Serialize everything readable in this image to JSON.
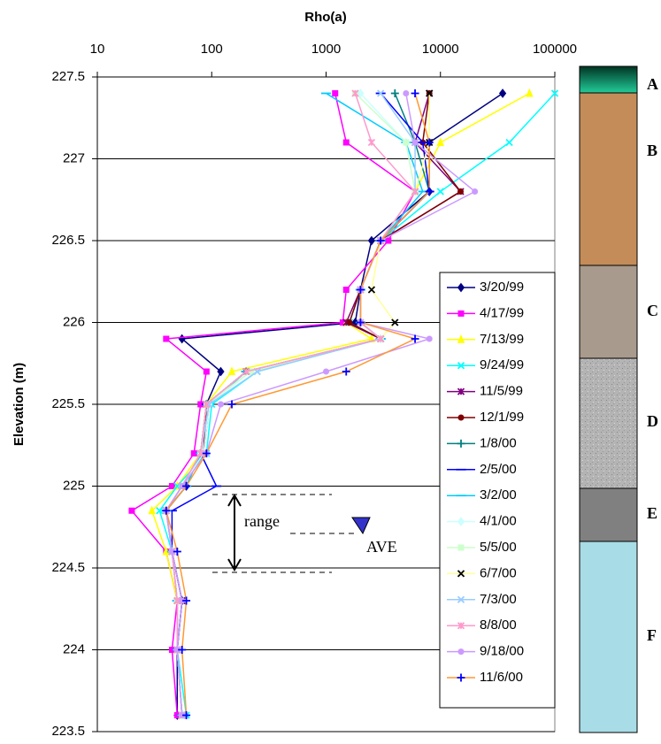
{
  "chart_data": {
    "type": "line",
    "title": "Rho(a)",
    "y_label": "Elevation (m)",
    "xscale": "log",
    "xlim": [
      10,
      100000
    ],
    "xticks": [
      10,
      100,
      1000,
      10000,
      100000
    ],
    "ylim": [
      223.5,
      227.5
    ],
    "yticks": [
      227.5,
      227,
      226.5,
      226,
      225.5,
      225,
      224.5,
      224,
      223.5
    ],
    "grid": true,
    "y": [
      227.4,
      227.1,
      226.8,
      226.5,
      226.2,
      226.0,
      225.9,
      225.7,
      225.5,
      225.2,
      225.0,
      224.85,
      224.6,
      224.3,
      224.0,
      223.6
    ],
    "series": [
      {
        "name": "3/20/99",
        "color": "#000080",
        "marker": "diamond",
        "values": [
          35000,
          8000,
          8000,
          2500,
          2000,
          1800,
          55,
          120,
          90,
          80,
          60,
          40,
          45,
          55,
          50,
          50
        ]
      },
      {
        "name": "4/17/99",
        "color": "#ff00ff",
        "marker": "square",
        "values": [
          1200,
          1500,
          6000,
          3500,
          1500,
          1400,
          40,
          90,
          80,
          70,
          45,
          20,
          40,
          50,
          45,
          50
        ]
      },
      {
        "name": "7/13/99",
        "color": "#ffff00",
        "marker": "triangle",
        "values": [
          60000,
          10000,
          6000,
          3000,
          2000,
          1500,
          2500,
          150,
          90,
          80,
          50,
          30,
          40,
          50,
          50,
          55
        ]
      },
      {
        "name": "9/24/99",
        "color": "#00ffff",
        "marker": "x",
        "values": [
          100000,
          40000,
          10000,
          3000,
          2000,
          1600,
          3000,
          250,
          100,
          90,
          50,
          35,
          45,
          55,
          50,
          60
        ]
      },
      {
        "name": "11/5/99",
        "color": "#800080",
        "marker": "star",
        "values": [
          8000,
          6000,
          15000,
          3000,
          2000,
          1500,
          3000,
          200,
          95,
          85,
          55,
          40,
          45,
          55,
          50,
          55
        ]
      },
      {
        "name": "12/1/99",
        "color": "#800000",
        "marker": "circle",
        "values": [
          8000,
          7000,
          15000,
          3000,
          2000,
          1600,
          3000,
          200,
          90,
          85,
          55,
          40,
          45,
          50,
          50,
          55
        ]
      },
      {
        "name": "1/8/00",
        "color": "#008080",
        "marker": "plus",
        "values": [
          4000,
          6000,
          8000,
          3000,
          2000,
          2000,
          3000,
          200,
          90,
          80,
          60,
          40,
          45,
          50,
          50,
          55
        ]
      },
      {
        "name": "2/5/00",
        "color": "#0000ff",
        "marker": "dash",
        "values": [
          3000,
          7000,
          8000,
          3000,
          2000,
          2000,
          3000,
          200,
          90,
          80,
          110,
          45,
          45,
          50,
          50,
          55
        ]
      },
      {
        "name": "3/2/00",
        "color": "#00ccff",
        "marker": "dash",
        "values": [
          1000,
          5000,
          7000,
          3000,
          2000,
          2000,
          3000,
          200,
          95,
          80,
          60,
          40,
          45,
          50,
          50,
          55
        ]
      },
      {
        "name": "4/1/00",
        "color": "#ccffff",
        "marker": "diamond",
        "values": [
          2000,
          5000,
          6000,
          3000,
          2000,
          2000,
          3000,
          220,
          95,
          85,
          55,
          40,
          45,
          50,
          50,
          55
        ]
      },
      {
        "name": "5/5/00",
        "color": "#ccffcc",
        "marker": "square",
        "values": [
          1800,
          5000,
          6000,
          3000,
          2000,
          2000,
          3000,
          220,
          90,
          80,
          55,
          40,
          45,
          50,
          50,
          55
        ]
      },
      {
        "name": "6/7/00",
        "color": "#ffff99",
        "marker_color": "#000000",
        "marker": "x",
        "values": [
          8000,
          8000,
          6000,
          3000,
          2500,
          4000,
          3000,
          200,
          90,
          80,
          55,
          40,
          45,
          50,
          50,
          55
        ]
      },
      {
        "name": "7/3/00",
        "color": "#99ccff",
        "marker": "x",
        "values": [
          3000,
          6000,
          6000,
          3000,
          2000,
          2000,
          3000,
          250,
          95,
          80,
          55,
          40,
          45,
          50,
          50,
          55
        ]
      },
      {
        "name": "8/8/00",
        "color": "#ff99cc",
        "marker": "star",
        "values": [
          1800,
          2500,
          6000,
          3000,
          2000,
          2000,
          3000,
          200,
          90,
          80,
          55,
          40,
          45,
          50,
          50,
          55
        ]
      },
      {
        "name": "9/18/00",
        "color": "#cc99ff",
        "marker": "circle",
        "values": [
          5000,
          6000,
          20000,
          3000,
          2000,
          2000,
          8000,
          1000,
          120,
          90,
          55,
          40,
          45,
          55,
          50,
          55
        ]
      },
      {
        "name": "11/6/00",
        "color": "#ff9933",
        "marker_color": "#0000ff",
        "marker": "plus",
        "values": [
          6000,
          8000,
          8000,
          3000,
          2000,
          2000,
          6000,
          1500,
          150,
          90,
          60,
          40,
          50,
          60,
          55,
          60
        ]
      }
    ],
    "annotations": {
      "range": "range",
      "ave": "AVE"
    },
    "layers": [
      "A",
      "B",
      "C",
      "D",
      "E",
      "F"
    ]
  }
}
